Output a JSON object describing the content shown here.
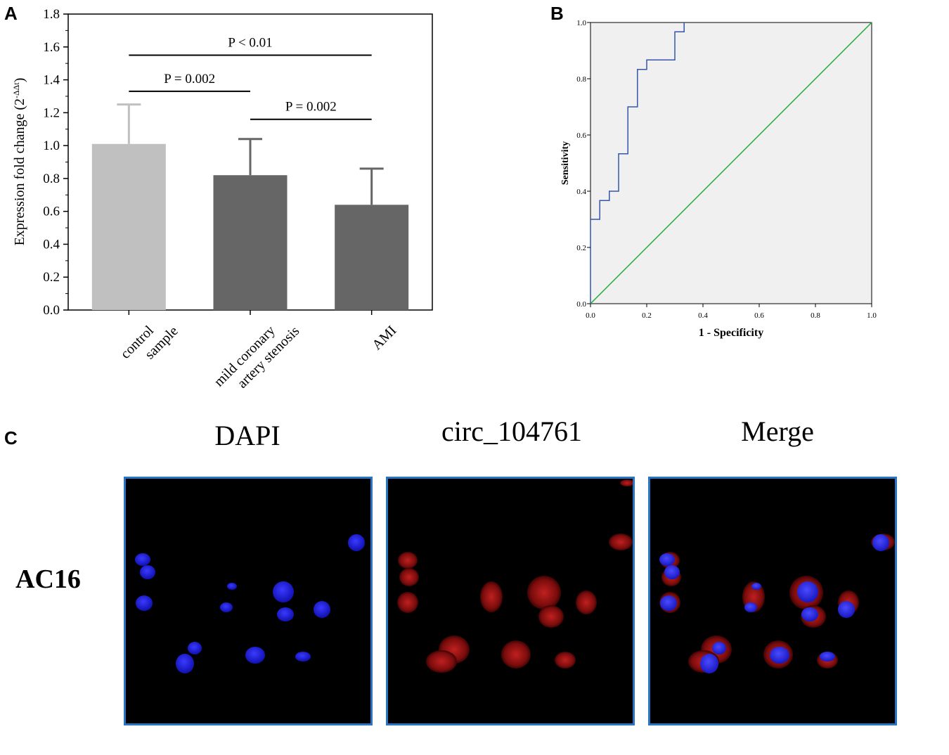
{
  "figure": {
    "panel_a_letter": "A",
    "panel_b_letter": "B",
    "panel_c_letter": "C"
  },
  "chart_data": [
    {
      "type": "bar",
      "panel": "A",
      "categories": [
        "control sample",
        "mild coronary artery stenosis",
        "AMI"
      ],
      "category_lines": [
        [
          "control",
          "sample"
        ],
        [
          "mild coronary",
          "artery stenosis"
        ],
        [
          "AMI"
        ]
      ],
      "values": [
        1.01,
        0.82,
        0.64
      ],
      "errors": [
        0.24,
        0.22,
        0.22
      ],
      "colors": [
        "#c0c0c0",
        "#666666",
        "#666666"
      ],
      "ylabel_main": "Expression fold change (2",
      "ylabel_sup": "-ΔΔt",
      "ylabel_end": ")",
      "ylim": [
        0,
        1.8
      ],
      "yticks": [
        "0.0",
        "0.2",
        "0.4",
        "0.6",
        "0.8",
        "1.0",
        "1.2",
        "1.4",
        "1.6",
        "1.8"
      ],
      "grid": false,
      "annotations": [
        {
          "text": "P < 0.01",
          "from": 0,
          "to": 2,
          "y": 1.55
        },
        {
          "text": "P = 0.002",
          "from": 0,
          "to": 1,
          "y": 1.33
        },
        {
          "text": "P = 0.002",
          "from": 1,
          "to": 2,
          "y": 1.16
        }
      ]
    },
    {
      "type": "line",
      "panel": "B",
      "xlabel": "1 - Specificity",
      "ylabel": "Sensitivity",
      "xlim": [
        0,
        1
      ],
      "ylim": [
        0,
        1
      ],
      "xticks": [
        "0.0",
        "0.2",
        "0.4",
        "0.6",
        "0.8",
        "1.0"
      ],
      "yticks": [
        "0.0",
        "0.2",
        "0.4",
        "0.6",
        "0.8",
        "1.0"
      ],
      "background": "#f0f0f0",
      "series": [
        {
          "color": "#3355aa",
          "x": [
            0,
            0,
            0.033,
            0.033,
            0.067,
            0.067,
            0.1,
            0.1,
            0.133,
            0.133,
            0.167,
            0.167,
            0.2,
            0.2,
            0.3,
            0.3,
            0.333,
            0.333
          ],
          "y": [
            0,
            0.3,
            0.3,
            0.367,
            0.367,
            0.4,
            0.4,
            0.533,
            0.533,
            0.7,
            0.7,
            0.833,
            0.833,
            0.867,
            0.867,
            0.967,
            0.967,
            1.0
          ]
        },
        {
          "color": "#22aa33",
          "x": [
            0,
            1
          ],
          "y": [
            0,
            1
          ]
        }
      ]
    }
  ],
  "microscopy": {
    "row_label": "AC16",
    "panels": [
      {
        "title": "DAPI"
      },
      {
        "title": "circ_104761"
      },
      {
        "title": "Merge"
      }
    ]
  }
}
